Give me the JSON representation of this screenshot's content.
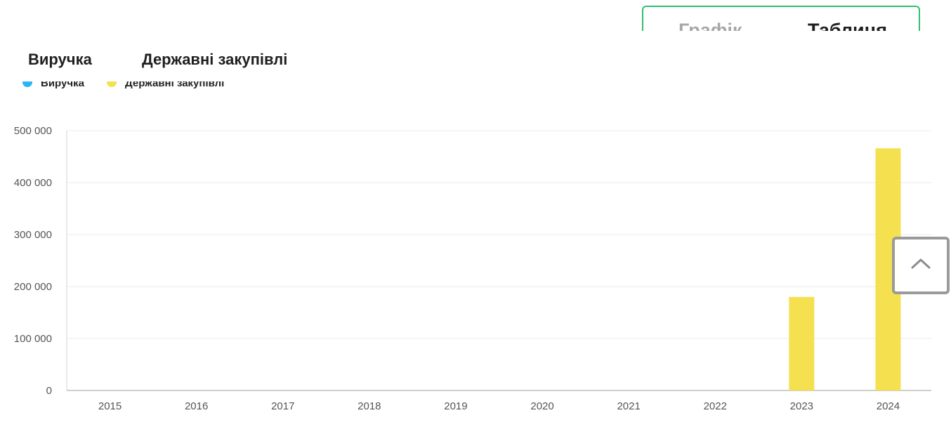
{
  "view_toggle": {
    "chart_label": "Графік",
    "table_label": "Таблиця"
  },
  "metric_tabs": [
    {
      "label": "Виручка"
    },
    {
      "label": "Державні закупівлі"
    }
  ],
  "legend": [
    {
      "label": "Виручка",
      "color": "#29b6f6"
    },
    {
      "label": "Державні закупівлі",
      "color": "#f5e04f"
    }
  ],
  "scroll_top": {
    "icon": "chevron-up-icon"
  },
  "chart_data": {
    "type": "bar",
    "categories": [
      "2015",
      "2016",
      "2017",
      "2018",
      "2019",
      "2020",
      "2021",
      "2022",
      "2023",
      "2024"
    ],
    "series": [
      {
        "name": "Виручка",
        "color": "#29b6f6",
        "values": [
          0,
          0,
          0,
          0,
          0,
          0,
          0,
          0,
          0,
          0
        ]
      },
      {
        "name": "Державні закупівлі",
        "color": "#f5e04f",
        "values": [
          0,
          0,
          0,
          0,
          0,
          0,
          0,
          0,
          180000,
          466000
        ]
      }
    ],
    "ylim": [
      0,
      500000
    ],
    "yticks": [
      0,
      100000,
      200000,
      300000,
      400000,
      500000
    ],
    "ytick_labels": [
      "0",
      "100 000",
      "200 000",
      "300 000",
      "400 000",
      "500 000"
    ],
    "grid": true,
    "xlabel": "",
    "ylabel": ""
  }
}
